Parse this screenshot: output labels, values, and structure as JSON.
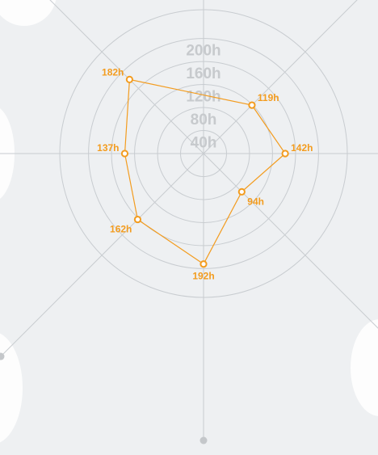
{
  "chart_data": {
    "type": "radar",
    "unit": "h",
    "ticks": [
      {
        "value": 40,
        "label": "40h"
      },
      {
        "value": 80,
        "label": "80h"
      },
      {
        "value": 120,
        "label": "120h"
      },
      {
        "value": 160,
        "label": "160h"
      },
      {
        "value": 200,
        "label": "200h"
      }
    ],
    "rlim": [
      0,
      250
    ],
    "grid": true,
    "series": [
      {
        "points": [
          {
            "label": "119h",
            "value": 119,
            "bearing": 45
          },
          {
            "label": "142h",
            "value": 142,
            "bearing": 90
          },
          {
            "label": "94h",
            "value": 94,
            "bearing": 135
          },
          {
            "label": "192h",
            "value": 192,
            "bearing": 180
          },
          {
            "label": "162h",
            "value": 162,
            "bearing": 225
          },
          {
            "label": "137h",
            "value": 137,
            "bearing": 270
          },
          {
            "label": "182h",
            "value": 182,
            "bearing": 315
          }
        ]
      }
    ],
    "colors": {
      "series": "#f39c1f",
      "grid": "#c8ccd0",
      "tick_text": "#c7cacd",
      "background": "#eef0f2",
      "blob": "#ffffff"
    }
  }
}
